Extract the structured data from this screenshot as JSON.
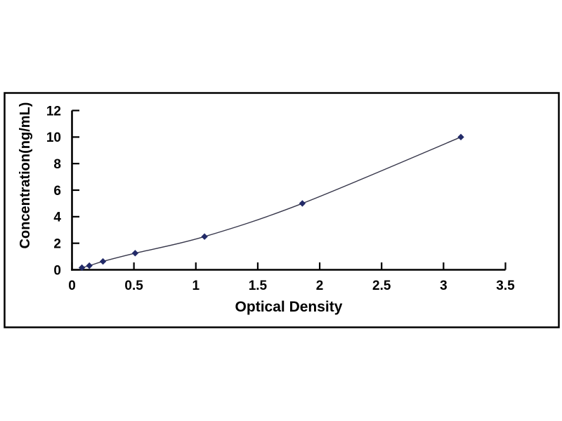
{
  "chart_data": {
    "type": "scatter",
    "title": "",
    "xlabel": "Optical Density",
    "ylabel": "Concentration(ng/mL)",
    "xlim": [
      0,
      3.5
    ],
    "ylim": [
      0,
      12
    ],
    "x_ticks": [
      0,
      0.5,
      1,
      1.5,
      2,
      2.5,
      3,
      3.5
    ],
    "x_tick_labels": [
      "0",
      "0.5",
      "1",
      "1.5",
      "2",
      "2.5",
      "3",
      "3.5"
    ],
    "y_ticks": [
      0,
      2,
      4,
      6,
      8,
      10,
      12
    ],
    "y_tick_labels": [
      "0",
      "2",
      "4",
      "6",
      "8",
      "10",
      "12"
    ],
    "grid": false,
    "legend": false,
    "frame_color": "#000000",
    "axis_color": "#000000",
    "background": "#FFFFFF",
    "series": [
      {
        "name": "standard-curve",
        "marker": "diamond",
        "marker_color": "#222A68",
        "line_color": "#36364A",
        "points": [
          {
            "x": 0.08,
            "y": 0.16
          },
          {
            "x": 0.14,
            "y": 0.31
          },
          {
            "x": 0.25,
            "y": 0.63
          },
          {
            "x": 0.51,
            "y": 1.25
          },
          {
            "x": 1.07,
            "y": 2.5
          },
          {
            "x": 1.86,
            "y": 5.0
          },
          {
            "x": 3.14,
            "y": 10.0
          }
        ]
      }
    ]
  }
}
